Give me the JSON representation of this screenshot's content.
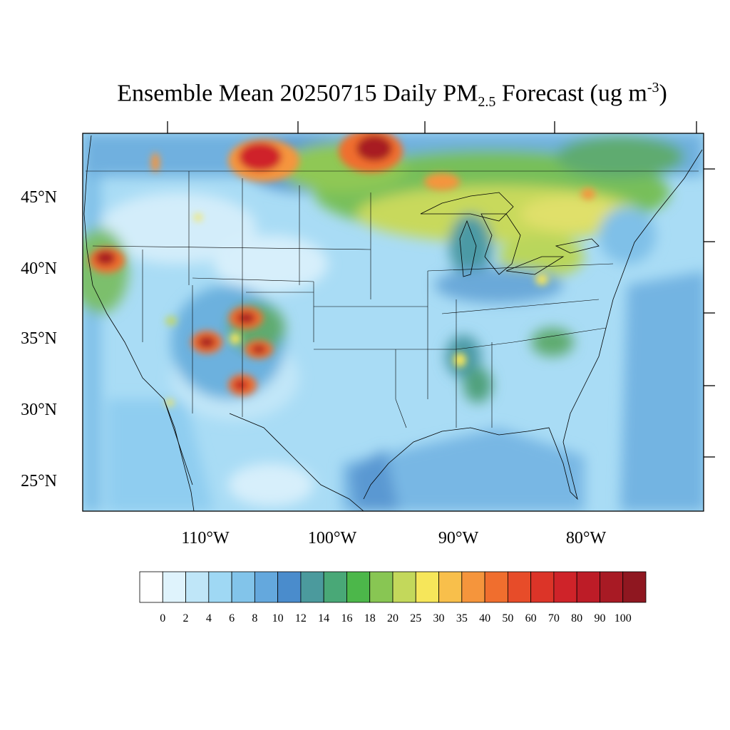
{
  "title": {
    "prefix": "Ensemble Mean 20250715 Daily PM",
    "subscript": "2.5",
    "middle": " Forecast (ug m",
    "superscript": "-3",
    "suffix": ")"
  },
  "lat_labels": [
    "45°N",
    "40°N",
    "35°N",
    "30°N",
    "25°N"
  ],
  "lon_labels": [
    "110°W",
    "100°W",
    "90°W",
    "80°W"
  ],
  "colorbar": {
    "colors": [
      "#ffffff",
      "#dff3fc",
      "#bfe6f8",
      "#9fd8f4",
      "#82c4ea",
      "#64a8dd",
      "#4a8ccc",
      "#4b9a9d",
      "#49a877",
      "#4cb74a",
      "#88c653",
      "#c3d85b",
      "#f6e65a",
      "#f8bf4b",
      "#f5953c",
      "#f06e2e",
      "#e74c29",
      "#dc3428",
      "#cf2329",
      "#bd1c27",
      "#a81a24",
      "#8f1720"
    ],
    "labels": [
      "0",
      "2",
      "4",
      "6",
      "8",
      "10",
      "12",
      "14",
      "16",
      "18",
      "20",
      "25",
      "30",
      "35",
      "40",
      "50",
      "60",
      "70",
      "80",
      "90",
      "100"
    ]
  }
}
